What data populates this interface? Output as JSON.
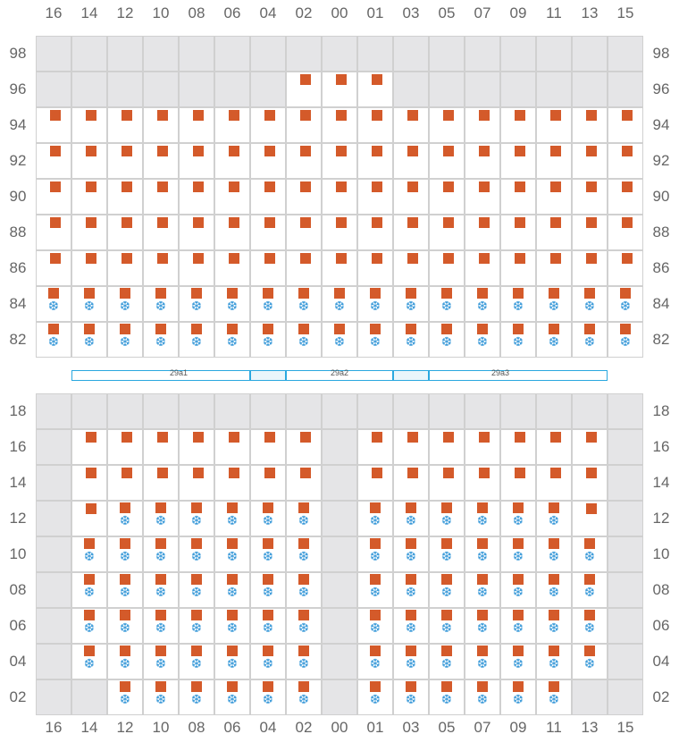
{
  "columns": [
    "16",
    "14",
    "12",
    "10",
    "08",
    "06",
    "04",
    "02",
    "00",
    "01",
    "03",
    "05",
    "07",
    "09",
    "11",
    "13",
    "15"
  ],
  "colors": {
    "box": "#d45a2a",
    "snow": "#3a9ad9",
    "blocked": "#e5e5e7",
    "zone_border": "#2aa8df"
  },
  "icons": {
    "box": "orange-square-icon",
    "snow": "snowflake-icon"
  },
  "snow_glyph": "❆",
  "upper_block": {
    "rows": [
      {
        "label": "98",
        "cells": "BBBBBBBBBBBBBBBBB"
      },
      {
        "label": "96",
        "cells": "BBBBBBBOOOBBBBBBB"
      },
      {
        "label": "94",
        "cells": "OOOOOOOOOOOOOOOOO"
      },
      {
        "label": "92",
        "cells": "OOOOOOOOOOOOOOOOO"
      },
      {
        "label": "90",
        "cells": "OOOOOOOOOOOOOOOOO"
      },
      {
        "label": "88",
        "cells": "OOOOOOOOOOOOOOOOO"
      },
      {
        "label": "86",
        "cells": "OOOOOOOOOOOOOOOOO"
      },
      {
        "label": "84",
        "cells": "SSSSSSSSSSSSSSSSS"
      },
      {
        "label": "82",
        "cells": "SSSSSSSSSSSSSSSSS"
      }
    ]
  },
  "zones": [
    {
      "label": "29a1"
    },
    {
      "label": "29a2"
    },
    {
      "label": "29a3"
    }
  ],
  "lower_block": {
    "rows": [
      {
        "label": "18",
        "cells": "BBBBBBBBBBBBBBBBB"
      },
      {
        "label": "16",
        "cells": "BOOOOOOOBOOOOOOOB"
      },
      {
        "label": "14",
        "cells": "BOOOOOOOBOOOOOOOB"
      },
      {
        "label": "12",
        "cells": "BOSSSSSSBSSSSSSOB"
      },
      {
        "label": "10",
        "cells": "BSSSSSSSBSSSSSSSB"
      },
      {
        "label": "08",
        "cells": "BSSSSSSSBSSSSSSSB"
      },
      {
        "label": "06",
        "cells": "BSSSSSSSBSSSSSSSB"
      },
      {
        "label": "04",
        "cells": "BSSSSSSSBSSSSSSSB"
      },
      {
        "label": "02",
        "cells": "BBSSSSSSBSSSSSSBB"
      }
    ]
  }
}
